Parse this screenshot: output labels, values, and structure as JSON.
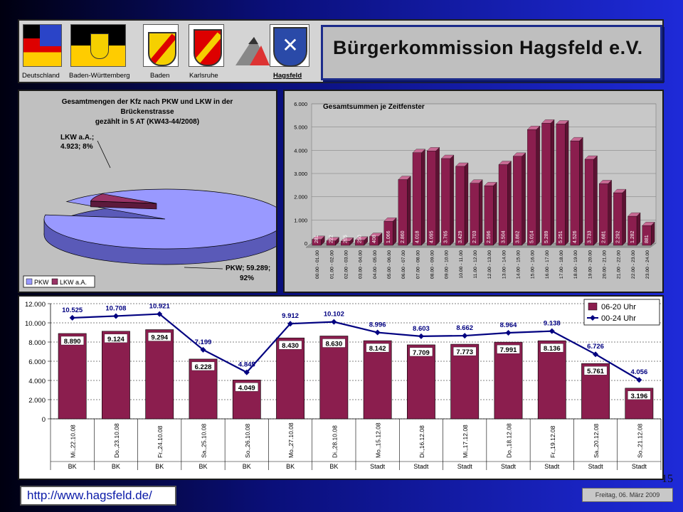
{
  "header": {
    "title": "Bürgerkommission Hagsfeld e.V.",
    "emblems": [
      {
        "label": "Deutschland",
        "icon": "germany-flag-icon"
      },
      {
        "label": "Baden-Württemberg",
        "icon": "bw-coat-of-arms-icon"
      },
      {
        "label": "Baden",
        "icon": "baden-coat-of-arms-icon"
      },
      {
        "label": "Karlsruhe",
        "icon": "karlsruhe-coat-of-arms-icon"
      },
      {
        "label": "",
        "icon": "triangle-logo-icon"
      },
      {
        "label": "Hagsfeld",
        "icon": "hagsfeld-coat-of-arms-icon"
      }
    ]
  },
  "footer": {
    "url": "http://www.hagsfeld.de/",
    "date": "Freitag, 06. März 2009",
    "page_number": "15"
  },
  "colors": {
    "pkw": "#9999ff",
    "lkw": "#993366",
    "bar": "#8b1e4e",
    "line": "#000080"
  },
  "chart_data": [
    {
      "type": "pie",
      "title": "Gesamtmengen der Kfz nach PKW und LKW in der Brückenstrasse gezählt in 5 AT (KW43-44/2008)",
      "title_lines": [
        "Gesamtmengen der Kfz nach PKW und LKW in der",
        "Brückenstrasse",
        "gezählt in 5 AT (KW43-44/2008)"
      ],
      "slices": [
        {
          "name": "PKW",
          "value": 59289,
          "percent": 92,
          "label": "PKW; 59.289; 92%"
        },
        {
          "name": "LKW a.A.",
          "value": 4923,
          "percent": 8,
          "label": "LKW a.A.; 4.923; 8%"
        }
      ],
      "legend": [
        "PKW",
        "LKW a.A."
      ],
      "legend_position": "bottom-left"
    },
    {
      "type": "bar",
      "title": "Gesamtsummen je Zeitfenster",
      "categories": [
        "00.00 - 01.00",
        "01.00 - 02.00",
        "02.00 - 03.00",
        "03.00 - 04.00",
        "04.00 - 05.00",
        "05.00 - 06.00",
        "06.00 - 07.00",
        "07.00 - 08.00",
        "08.00 - 09.00",
        "09.00 - 10.00",
        "10.00 - 11.00",
        "11.00 - 12.00",
        "12.00 - 13.00",
        "13.00 - 14.00",
        "14.00 - 15.00",
        "15.00 - 16.00",
        "16.00 - 17.00",
        "17.00 - 18.00",
        "18.00 - 19.00",
        "19.00 - 20.00",
        "20.00 - 21.00",
        "21.00 - 22.00",
        "22.00 - 23.00",
        "23.00 - 24.00"
      ],
      "values": [
        281,
        222,
        205,
        250,
        408,
        1066,
        2860,
        4018,
        4095,
        3765,
        3429,
        2703,
        2596,
        3504,
        3862,
        5014,
        5289,
        5251,
        4526,
        3733,
        2681,
        2292,
        1282,
        881
      ],
      "labels": [
        "281",
        "222",
        "205",
        "250",
        "408",
        "1.066",
        "2.860",
        "4.018",
        "4.095",
        "3.765",
        "3.429",
        "2.703",
        "2.596",
        "3.504",
        "3.862",
        "5.014",
        "5.289",
        "5.251",
        "4.526",
        "3.733",
        "2.681",
        "2.292",
        "1.282",
        "881"
      ],
      "yticks": [
        "0",
        "1.000",
        "2.000",
        "3.000",
        "4.000",
        "5.000",
        "6.000"
      ],
      "ylim": [
        0,
        6000
      ]
    },
    {
      "type": "bar+line",
      "categories": [
        "Mi.,22.10.08",
        "Do.,23.10.08",
        "Fr.,24.10.08",
        "Sa.,25.10.08",
        "So.,26.10.08",
        "Mo.,27.10.08",
        "Di.,28.10.08",
        "Mo.,15.12.08",
        "Di.,16.12.08",
        "Mi.,17.12.08",
        "Do.,18.12.08",
        "Fr.,19.12.08",
        "Sa.,20.12.08",
        "So.,21.12.08"
      ],
      "groups": [
        "BK",
        "BK",
        "BK",
        "BK",
        "BK",
        "BK",
        "BK",
        "Stadt",
        "Stadt",
        "Stadt",
        "Stadt",
        "Stadt",
        "Stadt",
        "Stadt"
      ],
      "series": [
        {
          "name": "06-20 Uhr",
          "type": "bar",
          "values": [
            8890,
            9124,
            9294,
            6228,
            4049,
            8430,
            8630,
            8142,
            7709,
            7773,
            7991,
            8136,
            5761,
            3196
          ],
          "labels": [
            "8.890",
            "9.124",
            "9.294",
            "6.228",
            "4.049",
            "8.430",
            "8.630",
            "8.142",
            "7.709",
            "7.773",
            "7.991",
            "8.136",
            "5.761",
            "3.196"
          ]
        },
        {
          "name": "00-24 Uhr",
          "type": "line",
          "values": [
            10525,
            10708,
            10921,
            7199,
            4845,
            9912,
            10102,
            8996,
            8603,
            8662,
            8964,
            9138,
            6726,
            4056
          ],
          "labels": [
            "10.525",
            "10.708",
            "10.921",
            "7.199",
            "4.845",
            "9.912",
            "10.102",
            "8.996",
            "8.603",
            "8.662",
            "8.964",
            "9.138",
            "6.726",
            "4.056"
          ]
        }
      ],
      "yticks": [
        "0",
        "2.000",
        "4.000",
        "6.000",
        "8.000",
        "10.000",
        "12.000"
      ],
      "ylim": [
        0,
        12000
      ],
      "legend_position": "top-right"
    }
  ]
}
